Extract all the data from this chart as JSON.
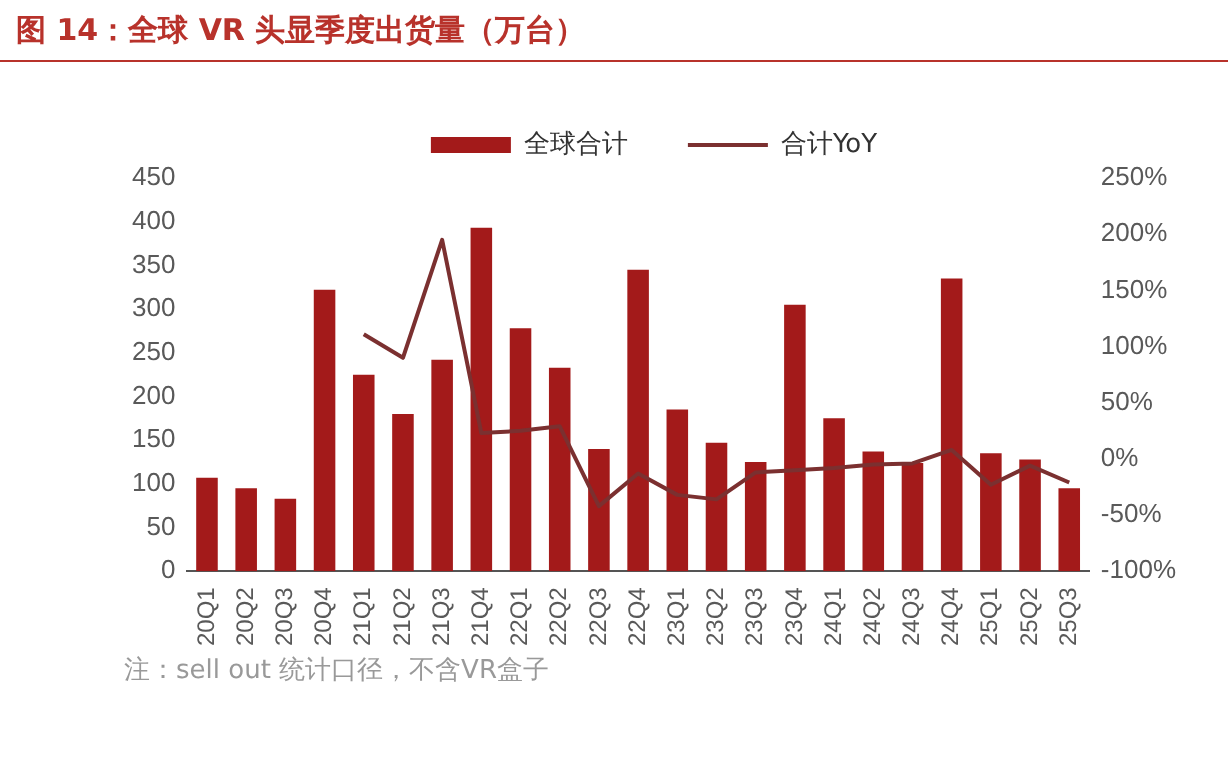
{
  "chart_data": {
    "type": "bar",
    "title": "图 14：全球 VR 头显季度出货量（万台）",
    "categories": [
      "20Q1",
      "20Q2",
      "20Q3",
      "20Q4",
      "21Q1",
      "21Q2",
      "21Q3",
      "21Q4",
      "22Q1",
      "22Q2",
      "22Q3",
      "22Q4",
      "23Q1",
      "23Q2",
      "23Q3",
      "23Q4",
      "24Q1",
      "24Q2",
      "24Q3",
      "24Q4",
      "25Q1",
      "25Q2",
      "25Q3"
    ],
    "series": [
      {
        "name": "全球合计",
        "color": "#a31a1a",
        "values": [
          107,
          95,
          83,
          322,
          225,
          180,
          242,
          393,
          278,
          233,
          140,
          345,
          185,
          147,
          125,
          305,
          175,
          137,
          124,
          335,
          135,
          128,
          95
        ]
      },
      {
        "name": "合计YoY",
        "type": "line",
        "axis": "y2",
        "color": "#7b3030",
        "values": [
          null,
          null,
          null,
          null,
          111,
          90,
          195,
          23,
          25,
          29,
          -42,
          -13,
          -32,
          -36,
          -12,
          -10,
          -8,
          -5,
          -4,
          8,
          -23,
          -6,
          -21
        ]
      }
    ],
    "ylim": [
      0,
      450
    ],
    "yticks": [
      0,
      50,
      100,
      150,
      200,
      250,
      300,
      350,
      400,
      450
    ],
    "y2lim": [
      -100,
      250
    ],
    "y2ticks": [
      {
        "value": -100,
        "label": "-100%"
      },
      {
        "value": -50,
        "label": "-50%"
      },
      {
        "value": 0,
        "label": "0%"
      },
      {
        "value": 50,
        "label": "50%"
      },
      {
        "value": 100,
        "label": "100%"
      },
      {
        "value": 150,
        "label": "150%"
      },
      {
        "value": 200,
        "label": "200%"
      },
      {
        "value": 250,
        "label": "250%"
      }
    ],
    "grid": false,
    "legend": "top",
    "marker": "none",
    "annotations": [
      "注：sell out 统计口径，不含VR盒子"
    ]
  }
}
